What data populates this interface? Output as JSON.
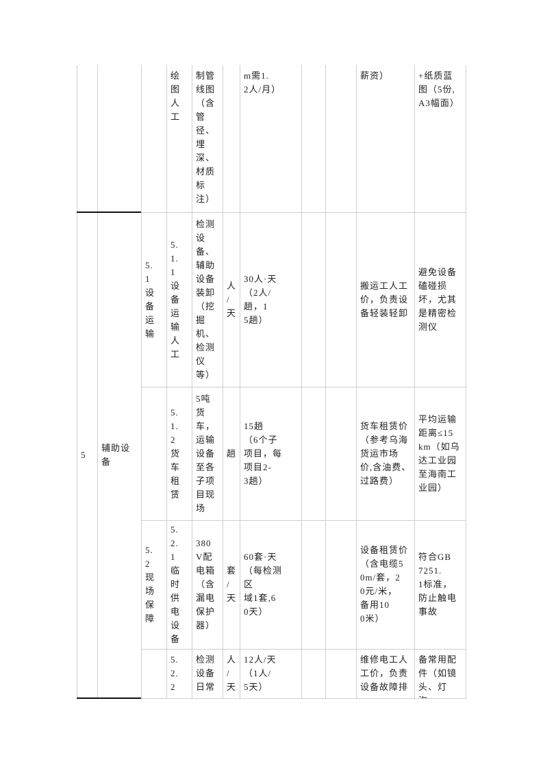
{
  "table": {
    "rows": [
      {
        "c4": "绘\n图\n人\n工",
        "c5": "制管\n线图\n（含\n管\n径、\n埋\n深、\n材质\n标\n注）",
        "c7": "m需1.\n2人/月）",
        "c10": "薪资）",
        "c11": "+纸质蓝\n图（5份,\nA3幅面）"
      },
      {
        "c3": "5.\n1\n设\n备\n运\n输",
        "c4": "5.\n1.\n1\n设\n备\n运\n输\n人\n工",
        "c5": "检测\n设\n备、\n辅助\n设备\n装卸\n（挖\n掘\n机、\n检测\n仪\n等）",
        "c6": "人\n/\n天",
        "c7": "30人·天\n（2人/\n趟，1\n5趟）",
        "c10": "搬运工人工\n价，负责设\n备轻装轻卸",
        "c11": "避免设备\n磕碰损\n坏，尤其\n是精密检\n测仪"
      },
      {
        "c4": "5.\n1.\n2\n货\n车\n租\n赁",
        "c5": "5吨\n货\n车，\n运输\n设备\n至各\n子项\n目现\n场",
        "c6": "趟",
        "c7": "15趟\n（6个子\n项目，每\n项目2-\n3趟）",
        "c10": "货车租赁价\n（参考乌海\n货运市场\n价,含油费、\n过路费）",
        "c11": "平均运输\n距离≤15\nkm（如乌\n达工业园\n至海南工\n业园）"
      },
      {
        "c3": "5.\n2\n现\n场\n保\n障",
        "c4": "5.\n2.\n1\n临\n时\n供\n电\n设\n备",
        "c5": "380\nV配\n电箱\n（含\n漏电\n保护\n器）",
        "c6": "套\n/\n天",
        "c7": "60套·天\n（每检测\n区\n域1套,6\n0天）",
        "c10": "设备租赁价\n（含电缆5\n0m/套，2\n0元/米，\n备用10\n0米）",
        "c11": "符合GB\n7251.\n1标准，\n防止触电\n事故"
      },
      {
        "c4": "5.\n2.\n2",
        "c5": "检测\n设备\n日常",
        "c6": "人\n/\n天",
        "c7": "12人/天\n（1人/\n5天）",
        "c10": "维修电工人\n工价，负责\n设备故障排",
        "c11": "备常用配\n件（如镜\n头、灯泡，"
      }
    ],
    "group": {
      "c1": "5",
      "c2": "辅助设\n备"
    }
  }
}
